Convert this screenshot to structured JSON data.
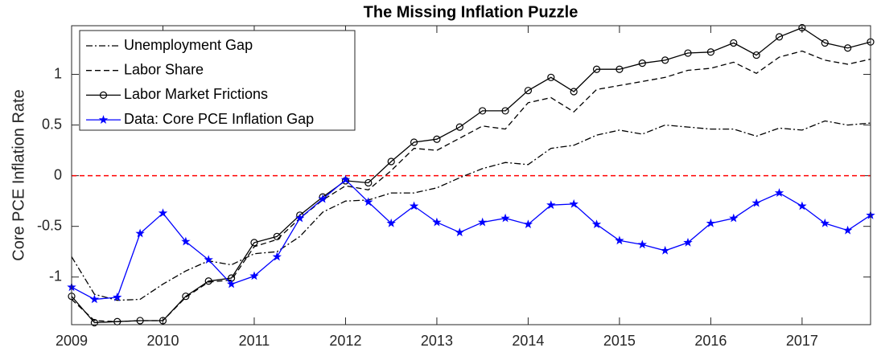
{
  "chart_data": {
    "type": "line",
    "title": "The Missing Inflation Puzzle",
    "y_label": "Core PCE Inflation Rate",
    "x": [
      2009,
      2009.25,
      2009.5,
      2009.75,
      2010,
      2010.25,
      2010.5,
      2010.75,
      2011,
      2011.25,
      2011.5,
      2011.75,
      2012,
      2012.25,
      2012.5,
      2012.75,
      2013,
      2013.25,
      2013.5,
      2013.75,
      2014,
      2014.25,
      2014.5,
      2014.75,
      2015,
      2015.25,
      2015.5,
      2015.75,
      2016,
      2016.25,
      2016.5,
      2016.75,
      2017,
      2017.25,
      2017.5,
      2017.75
    ],
    "series": [
      {
        "name": "Unemployment Gap",
        "color": "#000000",
        "dash": "dashdot",
        "marker": "none",
        "values": [
          -0.8,
          -1.17,
          -1.23,
          -1.22,
          -1.07,
          -0.94,
          -0.84,
          -0.88,
          -0.77,
          -0.75,
          -0.6,
          -0.36,
          -0.25,
          -0.24,
          -0.17,
          -0.17,
          -0.12,
          -0.02,
          0.07,
          0.13,
          0.11,
          0.27,
          0.3,
          0.4,
          0.45,
          0.41,
          0.5,
          0.48,
          0.46,
          0.46,
          0.39,
          0.47,
          0.45,
          0.54,
          0.5,
          0.52
        ]
      },
      {
        "name": "Labor Share",
        "color": "#000000",
        "dash": "dash",
        "marker": "none",
        "values": [
          -1.22,
          -1.43,
          -1.44,
          -1.43,
          -1.43,
          -1.2,
          -1.05,
          -1.03,
          -0.7,
          -0.63,
          -0.42,
          -0.24,
          -0.1,
          -0.14,
          0.05,
          0.27,
          0.25,
          0.37,
          0.49,
          0.46,
          0.72,
          0.77,
          0.63,
          0.85,
          0.89,
          0.93,
          0.97,
          1.04,
          1.06,
          1.12,
          1.01,
          1.17,
          1.23,
          1.14,
          1.1,
          1.15
        ]
      },
      {
        "name": "Labor Market Frictions",
        "color": "#000000",
        "dash": "solid",
        "marker": "circle",
        "values": [
          -1.19,
          -1.45,
          -1.44,
          -1.43,
          -1.43,
          -1.19,
          -1.04,
          -1.01,
          -0.66,
          -0.6,
          -0.39,
          -0.21,
          -0.05,
          -0.07,
          0.14,
          0.33,
          0.36,
          0.48,
          0.64,
          0.64,
          0.84,
          0.97,
          0.83,
          1.05,
          1.05,
          1.11,
          1.14,
          1.21,
          1.22,
          1.31,
          1.19,
          1.37,
          1.46,
          1.31,
          1.26,
          1.32
        ]
      },
      {
        "name": "Data: Core PCE Inflation Gap",
        "color": "#0000ff",
        "dash": "solid",
        "marker": "star",
        "values": [
          -1.1,
          -1.22,
          -1.2,
          -0.57,
          -0.37,
          -0.65,
          -0.83,
          -1.07,
          -0.99,
          -0.8,
          -0.42,
          -0.23,
          -0.04,
          -0.26,
          -0.47,
          -0.3,
          -0.46,
          -0.56,
          -0.46,
          -0.42,
          -0.48,
          -0.29,
          -0.28,
          -0.48,
          -0.64,
          -0.68,
          -0.74,
          -0.66,
          -0.47,
          -0.42,
          -0.27,
          -0.17,
          -0.3,
          -0.47,
          -0.54,
          -0.39
        ]
      }
    ],
    "xlim": [
      2009,
      2017.75
    ],
    "xticks": [
      2009,
      2010,
      2011,
      2012,
      2013,
      2014,
      2015,
      2016,
      2017
    ],
    "ylim": [
      -1.47,
      1.48
    ],
    "yticks": [
      -1,
      -0.5,
      0,
      0.5,
      1
    ],
    "reference_line": {
      "value": 0,
      "color": "#ff0000"
    },
    "legend": "upper-left"
  }
}
